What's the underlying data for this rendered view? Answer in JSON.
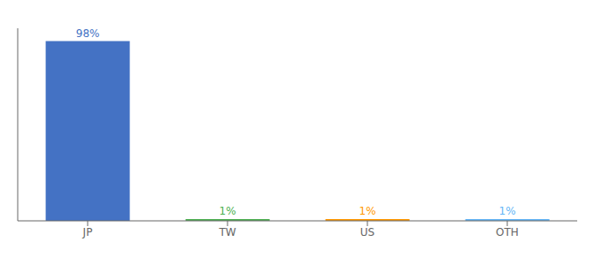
{
  "chart_data": {
    "type": "bar",
    "categories": [
      "JP",
      "TW",
      "US",
      "OTH"
    ],
    "values": [
      98,
      1,
      1,
      1
    ],
    "value_labels": [
      "98%",
      "1%",
      "1%",
      "1%"
    ],
    "colors": [
      "#4472c4",
      "#4caf50",
      "#ff9800",
      "#64b5f6"
    ],
    "ylim": [
      0,
      105
    ],
    "data_labels": true,
    "tick_labels": "x",
    "grid": false
  }
}
